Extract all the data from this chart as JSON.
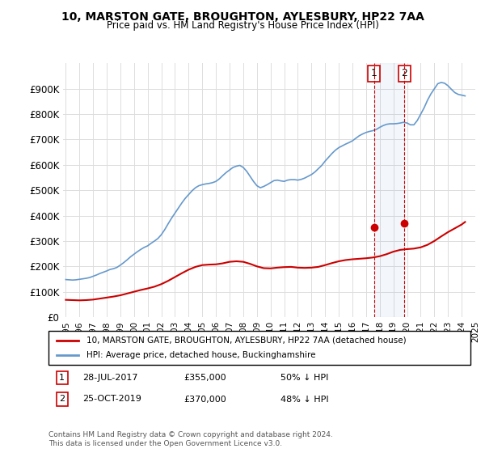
{
  "title": "10, MARSTON GATE, BROUGHTON, AYLESBURY, HP22 7AA",
  "subtitle": "Price paid vs. HM Land Registry's House Price Index (HPI)",
  "ylabel": "",
  "xlabel": "",
  "hpi_color": "#6699cc",
  "price_color": "#cc0000",
  "background_color": "#ffffff",
  "grid_color": "#dddddd",
  "ylim": [
    0,
    1000000
  ],
  "yticks": [
    0,
    100000,
    200000,
    300000,
    400000,
    500000,
    600000,
    700000,
    800000,
    900000
  ],
  "ytick_labels": [
    "£0",
    "£100K",
    "£200K",
    "£300K",
    "£400K",
    "£500K",
    "£600K",
    "£700K",
    "£800K",
    "£900K"
  ],
  "sale1_date": 2017.57,
  "sale1_price": 355000,
  "sale1_label": "1",
  "sale2_date": 2019.81,
  "sale2_price": 370000,
  "sale2_label": "2",
  "legend_line1": "10, MARSTON GATE, BROUGHTON, AYLESBURY, HP22 7AA (detached house)",
  "legend_line2": "HPI: Average price, detached house, Buckinghamshire",
  "footnote1": "1    28-JUL-2017        £355,000        50% ↓ HPI",
  "footnote2": "2    25-OCT-2019        £370,000        48% ↓ HPI",
  "copyright": "Contains HM Land Registry data © Crown copyright and database right 2024.\nThis data is licensed under the Open Government Licence v3.0.",
  "hpi_years": [
    1995.0,
    1995.25,
    1995.5,
    1995.75,
    1996.0,
    1996.25,
    1996.5,
    1996.75,
    1997.0,
    1997.25,
    1997.5,
    1997.75,
    1998.0,
    1998.25,
    1998.5,
    1998.75,
    1999.0,
    1999.25,
    1999.5,
    1999.75,
    2000.0,
    2000.25,
    2000.5,
    2000.75,
    2001.0,
    2001.25,
    2001.5,
    2001.75,
    2002.0,
    2002.25,
    2002.5,
    2002.75,
    2003.0,
    2003.25,
    2003.5,
    2003.75,
    2004.0,
    2004.25,
    2004.5,
    2004.75,
    2005.0,
    2005.25,
    2005.5,
    2005.75,
    2006.0,
    2006.25,
    2006.5,
    2006.75,
    2007.0,
    2007.25,
    2007.5,
    2007.75,
    2008.0,
    2008.25,
    2008.5,
    2008.75,
    2009.0,
    2009.25,
    2009.5,
    2009.75,
    2010.0,
    2010.25,
    2010.5,
    2010.75,
    2011.0,
    2011.25,
    2011.5,
    2011.75,
    2012.0,
    2012.25,
    2012.5,
    2012.75,
    2013.0,
    2013.25,
    2013.5,
    2013.75,
    2014.0,
    2014.25,
    2014.5,
    2014.75,
    2015.0,
    2015.25,
    2015.5,
    2015.75,
    2016.0,
    2016.25,
    2016.5,
    2016.75,
    2017.0,
    2017.25,
    2017.5,
    2017.75,
    2018.0,
    2018.25,
    2018.5,
    2018.75,
    2019.0,
    2019.25,
    2019.5,
    2019.75,
    2020.0,
    2020.25,
    2020.5,
    2020.75,
    2021.0,
    2021.25,
    2021.5,
    2021.75,
    2022.0,
    2022.25,
    2022.5,
    2022.75,
    2023.0,
    2023.25,
    2023.5,
    2023.75,
    2024.0,
    2024.25
  ],
  "hpi_values": [
    148000,
    147000,
    146000,
    147000,
    149000,
    151000,
    153000,
    156000,
    161000,
    166000,
    172000,
    177000,
    182000,
    188000,
    191000,
    196000,
    205000,
    215000,
    226000,
    238000,
    248000,
    258000,
    267000,
    275000,
    281000,
    291000,
    300000,
    310000,
    325000,
    345000,
    368000,
    390000,
    410000,
    430000,
    450000,
    468000,
    483000,
    498000,
    510000,
    518000,
    522000,
    525000,
    527000,
    530000,
    535000,
    545000,
    558000,
    570000,
    580000,
    590000,
    595000,
    598000,
    590000,
    575000,
    555000,
    535000,
    518000,
    510000,
    515000,
    522000,
    530000,
    538000,
    540000,
    537000,
    535000,
    540000,
    542000,
    542000,
    540000,
    543000,
    548000,
    555000,
    562000,
    572000,
    585000,
    598000,
    615000,
    630000,
    645000,
    658000,
    668000,
    675000,
    682000,
    688000,
    695000,
    705000,
    715000,
    722000,
    728000,
    732000,
    735000,
    740000,
    748000,
    755000,
    760000,
    762000,
    762000,
    763000,
    765000,
    768000,
    765000,
    758000,
    758000,
    775000,
    800000,
    825000,
    855000,
    880000,
    900000,
    920000,
    925000,
    922000,
    912000,
    898000,
    885000,
    878000,
    875000,
    872000
  ],
  "price_years": [
    1995.0,
    1995.5,
    1996.0,
    1996.5,
    1997.0,
    1997.5,
    1998.0,
    1998.5,
    1999.0,
    1999.5,
    2000.0,
    2000.5,
    2001.0,
    2001.5,
    2002.0,
    2002.5,
    2003.0,
    2003.5,
    2004.0,
    2004.5,
    2005.0,
    2005.5,
    2006.0,
    2006.5,
    2007.0,
    2007.5,
    2008.0,
    2008.5,
    2009.0,
    2009.5,
    2010.0,
    2010.5,
    2011.0,
    2011.5,
    2012.0,
    2012.5,
    2013.0,
    2013.5,
    2014.0,
    2014.5,
    2015.0,
    2015.5,
    2016.0,
    2016.5,
    2017.0,
    2017.5,
    2018.0,
    2018.5,
    2019.0,
    2019.5,
    2020.0,
    2020.5,
    2021.0,
    2021.5,
    2022.0,
    2022.5,
    2023.0,
    2023.5,
    2024.0,
    2024.25
  ],
  "price_values": [
    68000,
    67000,
    66000,
    67000,
    69000,
    73000,
    77000,
    81000,
    86000,
    93000,
    100000,
    107000,
    113000,
    120000,
    130000,
    143000,
    158000,
    173000,
    187000,
    198000,
    205000,
    207000,
    208000,
    212000,
    218000,
    220000,
    218000,
    210000,
    200000,
    193000,
    192000,
    195000,
    197000,
    198000,
    195000,
    194000,
    195000,
    198000,
    205000,
    213000,
    220000,
    225000,
    228000,
    230000,
    232000,
    235000,
    240000,
    248000,
    258000,
    265000,
    268000,
    270000,
    275000,
    285000,
    300000,
    318000,
    335000,
    350000,
    365000,
    375000
  ]
}
